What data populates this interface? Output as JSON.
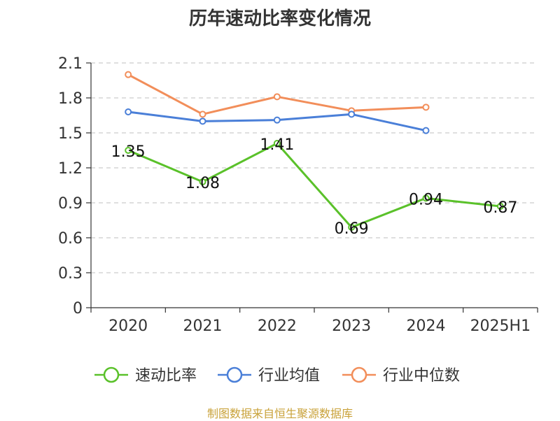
{
  "chart_data": {
    "type": "line",
    "title": "历年速动比率变化情况",
    "categories": [
      "2020",
      "2021",
      "2022",
      "2023",
      "2024",
      "2025H1"
    ],
    "ylim": [
      0,
      2.1
    ],
    "yticks": [
      "0",
      "0.3",
      "0.6",
      "0.9",
      "1.2",
      "1.5",
      "1.8",
      "2.1"
    ],
    "grid": true,
    "legend_position": "bottom",
    "series": [
      {
        "name": "速动比率",
        "color": "#5ac12a",
        "values": [
          1.35,
          1.08,
          1.41,
          0.69,
          0.94,
          0.87
        ],
        "labels": [
          "1.35",
          "1.08",
          "1.41",
          "0.69",
          "0.94",
          "0.87"
        ]
      },
      {
        "name": "行业均值",
        "color": "#4a7fd8",
        "values": [
          1.68,
          1.6,
          1.61,
          1.66,
          1.52,
          null
        ]
      },
      {
        "name": "行业中位数",
        "color": "#f28e5a",
        "values": [
          2.0,
          1.66,
          1.81,
          1.69,
          1.72,
          null
        ]
      }
    ]
  },
  "footer": {
    "source": "制图数据来自恒生聚源数据库"
  }
}
